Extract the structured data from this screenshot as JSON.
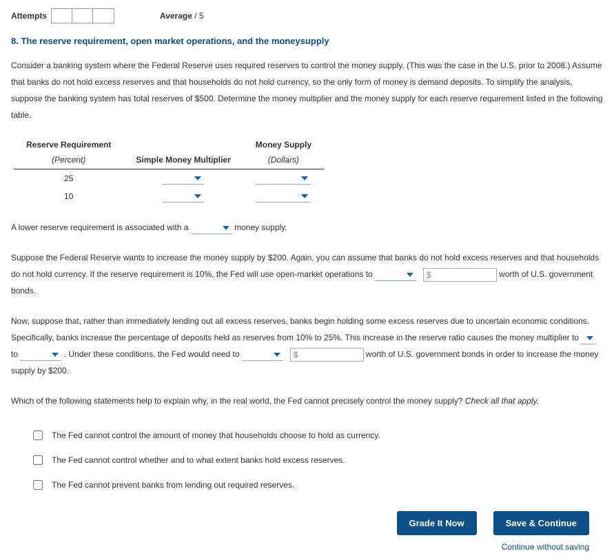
{
  "header": {
    "attempts_label": "Attempts",
    "attempt_cells": 3,
    "average_label": "Average",
    "average_sep": "/",
    "average_total": "5"
  },
  "title": "8. The reserve requirement, open market operations, and the moneysupply",
  "p1": "Consider a banking system where the Federal Reserve uses required reserves to control the money supply. (This was the case in the U.S. prior to 2008.) Assume that banks do not hold excess reserves and that households do not hold currency, so the only form of money is demand deposits. To simplify the analysis, suppose the banking system has total reserves of $500. Determine the money multiplier and the money supply for each reserve requirement listed in the following table.",
  "table": {
    "h1": "Reserve Requirement",
    "h1_sub": "(Percent)",
    "h2": "Simple Money Multiplier",
    "h3": "Money Supply",
    "h3_sub": "(Dollars)",
    "rows": [
      {
        "rr": "25"
      },
      {
        "rr": "10"
      }
    ]
  },
  "p2_pre": "A lower reserve requirement is associated with a ",
  "p2_post": " money supply.",
  "p3_a": "Suppose the Federal Reserve wants to increase the money supply by $200. Again, you can assume that banks do not hold excess reserves and that households do not hold currency. If the reserve requirement is 10%, the Fed will use open-market operations to ",
  "p3_b": " worth of U.S. government bonds.",
  "p4_a": "Now, suppose that, rather than immediately lending out all excess reserves, banks begin holding some excess reserves due to uncertain economic conditions. Specifically, banks increase the percentage of deposits held as reserves from 10% to 25%. This increase in the reserve ratio causes the money multiplier to ",
  "p4_b": " to ",
  "p4_c": " . Under these conditions, the Fed would need to ",
  "p4_d": " worth of U.S. government bonds in order to increase the money supply by $200.",
  "p5_a": "Which of the following statements help to explain why, in the real world, the Fed cannot precisely control the money supply? ",
  "p5_b": "Check all that apply.",
  "checks": [
    "The Fed cannot control the amount of money that households choose to hold as currency.",
    "The Fed cannot control whether and to what extent banks hold excess reserves.",
    "The Fed cannot prevent banks from lending out required reserves."
  ],
  "dollar_symbol": "$",
  "buttons": {
    "grade": "Grade It Now",
    "save": "Save & Continue",
    "continue": "Continue without saving"
  }
}
